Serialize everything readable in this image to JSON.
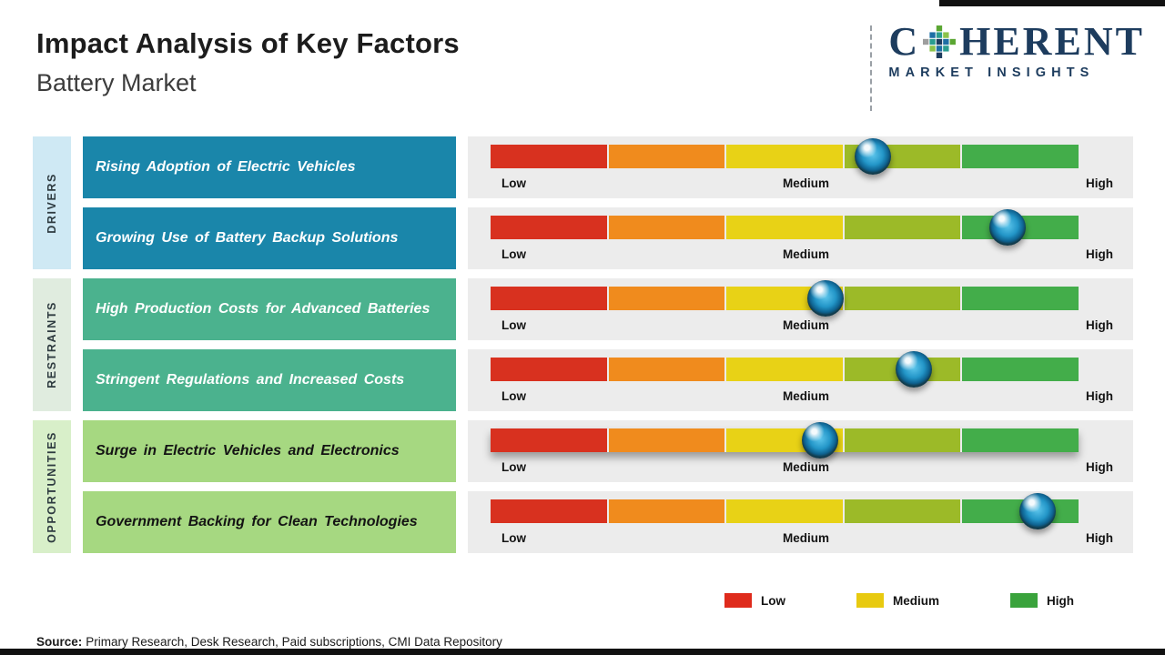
{
  "header": {
    "title": "Impact Analysis of Key Factors",
    "subtitle": "Battery Market"
  },
  "logo": {
    "part1": "C",
    "part2": "HERENT",
    "tagline": "MARKET INSIGHTS"
  },
  "scale": {
    "low": "Low",
    "medium": "Medium",
    "high": "High"
  },
  "groups": [
    {
      "label": "DRIVERS",
      "rows": [
        {
          "factor": "Rising Adoption of Electric Vehicles",
          "impact_pct": 65
        },
        {
          "factor": "Growing Use of Battery Backup Solutions",
          "impact_pct": 88
        }
      ]
    },
    {
      "label": "RESTRAINTS",
      "rows": [
        {
          "factor": "High Production Costs for Advanced Batteries",
          "impact_pct": 57
        },
        {
          "factor": "Stringent Regulations and Increased Costs",
          "impact_pct": 72
        }
      ]
    },
    {
      "label": "OPPORTUNITIES",
      "rows": [
        {
          "factor": "Surge in Electric Vehicles and Electronics",
          "impact_pct": 56
        },
        {
          "factor": "Government Backing for Clean Technologies",
          "impact_pct": 93
        }
      ]
    }
  ],
  "legend": [
    {
      "label": "Low",
      "color": "#df2b1c"
    },
    {
      "label": "Medium",
      "color": "#e8ca10"
    },
    {
      "label": "High",
      "color": "#3aa33c"
    }
  ],
  "footer": {
    "source_label": "Source:",
    "source_text": "Primary Research, Desk Research, Paid subscriptions, CMI Data Repository"
  },
  "colors": {
    "segments": [
      "#d8311f",
      "#f08b1d",
      "#e8d216",
      "#9cba28",
      "#43ad4a"
    ],
    "drivers_box": "#1a86aa",
    "restraints_box": "#4bb28e",
    "opportunities_box": "#a6d881",
    "drivers_side": "#cfe9f4",
    "restraints_side": "#e0ecdf",
    "opportunities_side": "#d8efc9",
    "logo_navy": "#1d3c5e"
  },
  "chart_data": {
    "type": "table",
    "title": "Impact Analysis of Key Factors",
    "subtitle": "Battery Market",
    "scale_labels": [
      "Low",
      "Medium",
      "High"
    ],
    "scale_range_pct": [
      0,
      100
    ],
    "legend": [
      "Low",
      "Medium",
      "High"
    ],
    "groups": [
      {
        "category": "DRIVERS",
        "factors": [
          {
            "name": "Rising Adoption of Electric Vehicles",
            "impact_position_pct": 65,
            "impact_level": "Medium-High"
          },
          {
            "name": "Growing Use of Battery Backup Solutions",
            "impact_position_pct": 88,
            "impact_level": "High"
          }
        ]
      },
      {
        "category": "RESTRAINTS",
        "factors": [
          {
            "name": "High Production Costs for Advanced Batteries",
            "impact_position_pct": 57,
            "impact_level": "Medium"
          },
          {
            "name": "Stringent Regulations and Increased Costs",
            "impact_position_pct": 72,
            "impact_level": "Medium-High"
          }
        ]
      },
      {
        "category": "OPPORTUNITIES",
        "factors": [
          {
            "name": "Surge in Electric Vehicles and Electronics",
            "impact_position_pct": 56,
            "impact_level": "Medium"
          },
          {
            "name": "Government Backing for Clean Technologies",
            "impact_position_pct": 93,
            "impact_level": "High"
          }
        ]
      }
    ]
  }
}
